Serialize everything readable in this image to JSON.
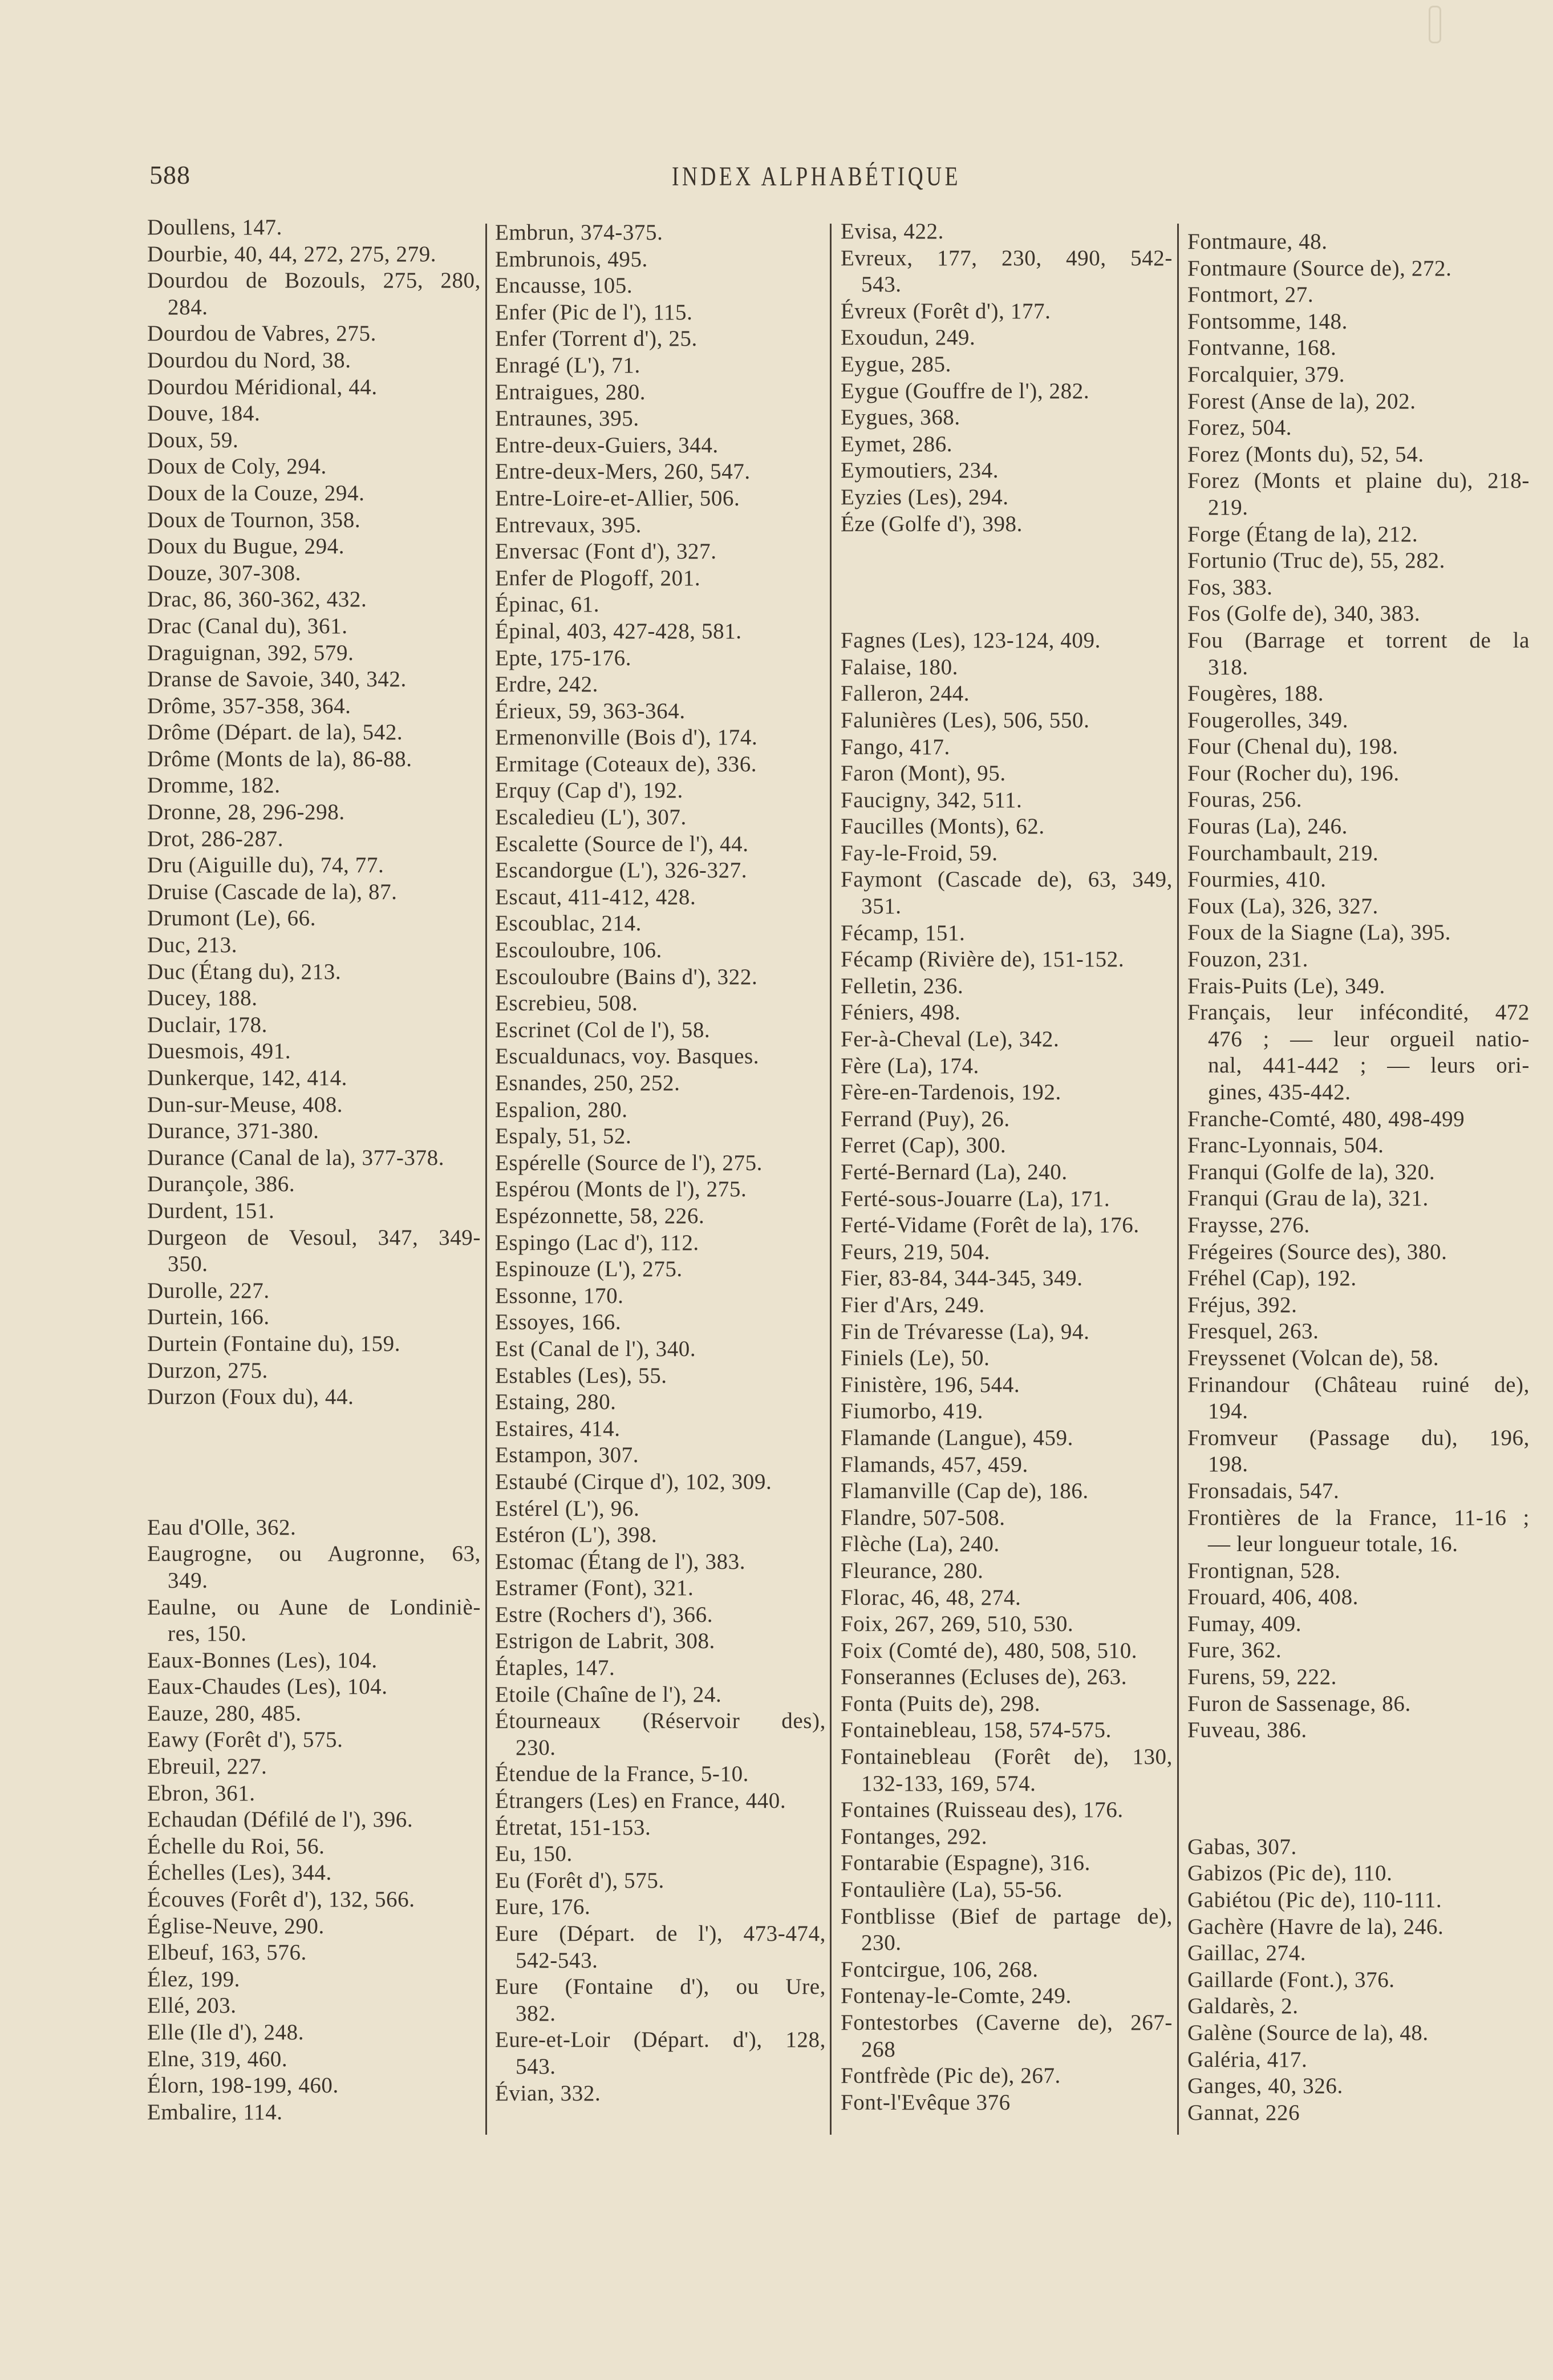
{
  "header": {
    "page_number": "588",
    "title": "INDEX ALPHABÉTIQUE"
  },
  "colors": {
    "paper": "#ebe3cf",
    "ink": "#3b332a",
    "rule": "#4a4036"
  },
  "columns": [
    {
      "blocks": [
        {
          "entries": [
            "Doullens, 147.",
            "Dourbie, 40, 44, 272, 275, 279.",
            [
              "Dourdou de Bozouls, 275, 280,",
              "284."
            ],
            "Dourdou de Vabres, 275.",
            "Dourdou du Nord, 38.",
            "Dourdou Méridional, 44.",
            "Douve, 184.",
            "Doux, 59.",
            "Doux de Coly, 294.",
            "Doux de la Couze, 294.",
            "Doux de Tournon, 358.",
            "Doux du Bugue, 294.",
            "Douze, 307-308.",
            "Drac, 86, 360-362, 432.",
            "Drac (Canal du), 361.",
            "Draguignan, 392, 579.",
            "Dranse de Savoie, 340, 342.",
            "Drôme, 357-358, 364.",
            "Drôme (Départ. de la), 542.",
            "Drôme (Monts de la), 86-88.",
            "Dromme, 182.",
            "Dronne, 28, 296-298.",
            "Drot, 286-287.",
            "Dru (Aiguille du), 74, 77.",
            "Druise (Cascade de la), 87.",
            "Drumont (Le), 66.",
            "Duc, 213.",
            "Duc (Étang du), 213.",
            "Ducey, 188.",
            "Duclair, 178.",
            "Duesmois, 491.",
            "Dunkerque, 142, 414.",
            "Dun-sur-Meuse, 408.",
            "Durance, 371-380.",
            "Durance (Canal de la), 377-378.",
            "Durançole, 386.",
            "Durdent, 151.",
            [
              "Durgeon de Vesoul, 347, 349-",
              "350."
            ],
            "Durolle, 227.",
            "Durtein, 166.",
            "Durtein (Fontaine du), 159.",
            "Durzon, 275.",
            "Durzon (Foux du), 44."
          ]
        },
        {
          "entries": [
            "Eau d'Olle, 362.",
            [
              "Eaugrogne, ou Augronne, 63,",
              "349."
            ],
            [
              "Eaulne, ou Aune de Londiniè-",
              "res, 150."
            ],
            "Eaux-Bonnes (Les), 104.",
            "Eaux-Chaudes (Les), 104.",
            "Eauze, 280, 485.",
            "Eawy (Forêt d'), 575.",
            "Ebreuil, 227.",
            "Ebron, 361.",
            "Echaudan (Défilé de l'), 396.",
            "Échelle du Roi, 56.",
            "Échelles (Les), 344.",
            "Écouves (Forêt d'), 132, 566.",
            "Église-Neuve, 290.",
            "Elbeuf, 163, 576.",
            "Élez, 199.",
            "Ellé, 203.",
            "Elle (Ile d'), 248.",
            "Elne, 319, 460.",
            "Élorn, 198-199, 460.",
            "Embalire, 114."
          ]
        }
      ]
    },
    {
      "blocks": [
        {
          "entries": [
            "Embrun, 374-375.",
            "Embrunois, 495.",
            "Encausse, 105.",
            "Enfer (Pic de l'), 115.",
            "Enfer (Torrent d'), 25.",
            "Enragé (L'), 71.",
            "Entraigues, 280.",
            "Entraunes, 395.",
            "Entre-deux-Guiers, 344.",
            "Entre-deux-Mers, 260, 547.",
            "Entre-Loire-et-Allier, 506.",
            "Entrevaux, 395.",
            "Enversac (Font d'), 327.",
            "Enfer de Plogoff, 201.",
            "Épinac, 61.",
            "Épinal, 403, 427-428, 581.",
            "Epte, 175-176.",
            "Erdre, 242.",
            "Érieux, 59, 363-364.",
            "Ermenonville (Bois d'), 174.",
            "Ermitage (Coteaux de), 336.",
            "Erquy (Cap d'), 192.",
            "Escaledieu (L'), 307.",
            "Escalette (Source de l'), 44.",
            "Escandorgue (L'), 326-327.",
            "Escaut, 411-412, 428.",
            "Escoublac, 214.",
            "Escouloubre, 106.",
            "Escouloubre (Bains d'), 322.",
            "Escrebieu, 508.",
            "Escrinet (Col de l'), 58.",
            "Escualdunacs, voy. Basques.",
            "Esnandes, 250, 252.",
            "Espalion, 280.",
            "Espaly, 51, 52.",
            "Espérelle (Source de l'), 275.",
            "Espérou (Monts de l'), 275.",
            "Espézonnette, 58, 226.",
            "Espingo (Lac d'), 112.",
            "Espinouze (L'), 275.",
            "Essonne, 170.",
            "Essoyes, 166.",
            "Est (Canal de l'), 340.",
            "Estables (Les), 55.",
            "Estaing, 280.",
            "Estaires, 414.",
            "Estampon, 307.",
            "Estaubé (Cirque d'), 102, 309.",
            "Estérel (L'), 96.",
            "Estéron (L'), 398.",
            "Estomac (Étang de l'), 383.",
            "Estramer (Font), 321.",
            "Estre (Rochers d'), 366.",
            "Estrigon de Labrit, 308.",
            "Étaples, 147.",
            "Etoile (Chaîne de l'), 24.",
            [
              "Étourneaux (Réservoir des),",
              "230."
            ],
            "Étendue de la France, 5-10.",
            "Étrangers (Les) en France, 440.",
            "Étretat, 151-153.",
            "Eu, 150.",
            "Eu (Forêt d'), 575.",
            "Eure, 176.",
            [
              "Eure (Départ. de l'), 473-474,",
              "542-543."
            ],
            [
              "Eure (Fontaine d'), ou Ure,",
              "382."
            ],
            [
              "Eure-et-Loir (Départ. d'), 128,",
              "543."
            ],
            "Évian, 332."
          ]
        }
      ]
    },
    {
      "blocks": [
        {
          "entries": [
            "Evisa, 422.",
            [
              "Evreux, 177, 230, 490, 542-",
              "543."
            ],
            "Évreux (Forêt d'), 177.",
            "Exoudun, 249.",
            "Eygue, 285.",
            "Eygue (Gouffre de l'), 282.",
            "Eygues, 368.",
            "Eymet, 286.",
            "Eymoutiers, 234.",
            "Eyzies (Les), 294.",
            "Éze (Golfe d'), 398."
          ]
        },
        {
          "entries": [
            "Fagnes (Les), 123-124, 409.",
            "Falaise, 180.",
            "Falleron, 244.",
            "Falunières (Les), 506, 550.",
            "Fango, 417.",
            "Faron (Mont), 95.",
            "Faucigny, 342, 511.",
            "Faucilles (Monts), 62.",
            "Fay-le-Froid, 59.",
            [
              "Faymont (Cascade de), 63, 349,",
              "351."
            ],
            "Fécamp, 151.",
            "Fécamp (Rivière de), 151-152.",
            "Felletin, 236.",
            "Féniers, 498.",
            "Fer-à-Cheval (Le), 342.",
            "Fère (La), 174.",
            "Fère-en-Tardenois, 192.",
            "Ferrand (Puy), 26.",
            "Ferret (Cap), 300.",
            "Ferté-Bernard (La), 240.",
            "Ferté-sous-Jouarre (La), 171.",
            "Ferté-Vidame (Forêt de la), 176.",
            "Feurs, 219, 504.",
            "Fier, 83-84, 344-345, 349.",
            "Fier d'Ars, 249.",
            "Fin de Trévaresse (La), 94.",
            "Finiels (Le), 50.",
            "Finistère, 196, 544.",
            "Fiumorbo, 419.",
            "Flamande (Langue), 459.",
            "Flamands, 457, 459.",
            "Flamanville (Cap de), 186.",
            "Flandre, 507-508.",
            "Flèche (La), 240.",
            "Fleurance, 280.",
            "Florac, 46, 48, 274.",
            "Foix, 267, 269, 510, 530.",
            "Foix (Comté de), 480, 508, 510.",
            "Fonserannes (Ecluses de), 263.",
            "Fonta (Puits de), 298.",
            "Fontainebleau, 158, 574-575.",
            [
              "Fontainebleau (Forêt de), 130,",
              "132-133, 169, 574."
            ],
            "Fontaines (Ruisseau des), 176.",
            "Fontanges, 292.",
            "Fontarabie (Espagne), 316.",
            "Fontaulière (La), 55-56.",
            [
              "Fontblisse (Bief de partage de),",
              "230."
            ],
            "Fontcirgue, 106, 268.",
            "Fontenay-le-Comte, 249.",
            [
              "Fontestorbes (Caverne de), 267-",
              "268"
            ],
            "Fontfrède (Pic de), 267.",
            "Font-l'Evêque 376"
          ]
        }
      ]
    },
    {
      "blocks": [
        {
          "entries": [
            "Fontmaure, 48.",
            "Fontmaure (Source de), 272.",
            "Fontmort, 27.",
            "Fontsomme, 148.",
            "Fontvanne, 168.",
            "Forcalquier, 379.",
            "Forest (Anse de la), 202.",
            "Forez, 504.",
            "Forez (Monts du), 52, 54.",
            [
              "Forez (Monts et plaine du), 218-",
              "219."
            ],
            "Forge (Étang de la), 212.",
            "Fortunio (Truc de), 55, 282.",
            "Fos, 383.",
            "Fos (Golfe de), 340, 383.",
            [
              "Fou (Barrage et torrent de la",
              "318."
            ],
            "Fougères, 188.",
            "Fougerolles, 349.",
            "Four (Chenal du), 198.",
            "Four (Rocher du), 196.",
            "Fouras, 256.",
            "Fouras (La), 246.",
            "Fourchambault, 219.",
            "Fourmies, 410.",
            "Foux (La), 326, 327.",
            "Foux de la Siagne (La), 395.",
            "Fouzon, 231.",
            "Frais-Puits (Le), 349.",
            [
              "Français, leur infécondité, 472",
              "476 ; — leur orgueil natio-",
              "nal, 441-442 ; — leurs ori-",
              "gines, 435-442."
            ],
            "Franche-Comté, 480, 498-499",
            "Franc-Lyonnais, 504.",
            "Franqui (Golfe de la), 320.",
            "Franqui (Grau de la), 321.",
            "Fraysse, 276.",
            "Frégeires (Source des), 380.",
            "Fréhel (Cap), 192.",
            "Fréjus, 392.",
            "Fresquel, 263.",
            "Freyssenet (Volcan de), 58.",
            [
              "Frinandour (Château ruiné de),",
              "194."
            ],
            [
              "Fromveur (Passage du), 196,",
              "198."
            ],
            "Fronsadais, 547.",
            [
              "Frontières de la France, 11-16 ;",
              "— leur longueur totale, 16."
            ],
            "Frontignan, 528.",
            "Frouard, 406, 408.",
            "Fumay, 409.",
            "Fure, 362.",
            "Furens, 59, 222.",
            "Furon de Sassenage, 86.",
            "Fuveau, 386."
          ]
        },
        {
          "entries": [
            "Gabas, 307.",
            "Gabizos (Pic de), 110.",
            "Gabiétou (Pic de), 110-111.",
            "Gachère (Havre de la), 246.",
            "Gaillac, 274.",
            "Gaillarde (Font.), 376.",
            "Galdarès, 2.",
            "Galène (Source de la), 48.",
            "Galéria, 417.",
            "Ganges, 40, 326.",
            "Gannat, 226"
          ]
        }
      ]
    }
  ]
}
